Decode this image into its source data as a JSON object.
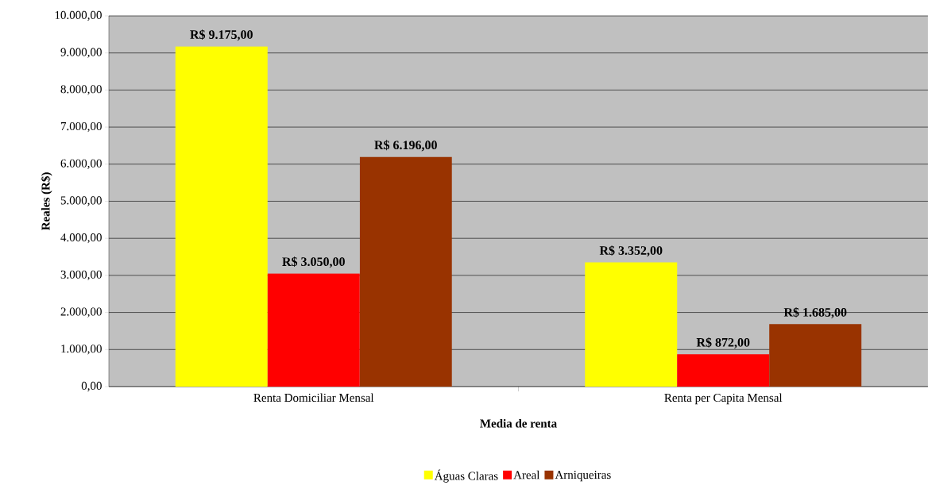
{
  "chart_data": {
    "type": "bar",
    "categories": [
      "Renta Domiciliar Mensal",
      "Renta per Capita Mensal"
    ],
    "series": [
      {
        "name": "Águas Claras",
        "color": "#ffff00",
        "values": [
          9175,
          3352
        ],
        "value_labels": [
          "R$ 9.175,00",
          "R$ 3.352,00"
        ]
      },
      {
        "name": "Areal",
        "color": "#ff0000",
        "values": [
          3050,
          872
        ],
        "value_labels": [
          "R$ 3.050,00",
          "R$ 872,00"
        ]
      },
      {
        "name": "Arniqueiras",
        "color": "#993300",
        "values": [
          6196,
          1685
        ],
        "value_labels": [
          "R$ 6.196,00",
          "R$ 1.685,00"
        ]
      }
    ],
    "xlabel": "Media de renta",
    "ylabel": "Reales (R$)",
    "ylim": [
      0,
      10000
    ],
    "yticks": [
      {
        "value": 0,
        "label": "0,00"
      },
      {
        "value": 1000,
        "label": "1.000,00"
      },
      {
        "value": 2000,
        "label": "2.000,00"
      },
      {
        "value": 3000,
        "label": "3.000,00"
      },
      {
        "value": 4000,
        "label": "4.000,00"
      },
      {
        "value": 5000,
        "label": "5.000,00"
      },
      {
        "value": 6000,
        "label": "6.000,00"
      },
      {
        "value": 7000,
        "label": "7.000,00"
      },
      {
        "value": 8000,
        "label": "8.000,00"
      },
      {
        "value": 9000,
        "label": "9.000,00"
      },
      {
        "value": 10000,
        "label": "10.000,00"
      }
    ],
    "grid": "y",
    "legend": "bottom"
  }
}
